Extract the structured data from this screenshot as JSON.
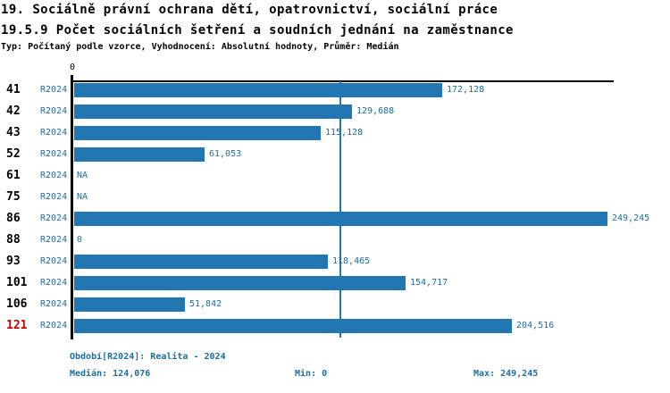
{
  "header": {
    "title_line1": "19. Sociálně právní ochrana dětí, opatrovnictví, sociální práce",
    "title_line2": "19.5.9 Počet sociálních šetření a soudních jednání na zaměstnance",
    "meta_line": "Typ: Počítaný podle vzorce, Vyhodnocení: Absolutní hodnoty, Průměr: Medián"
  },
  "chart_data": {
    "type": "bar",
    "orientation": "horizontal",
    "title": "19.5.9 Počet sociálních šetření a soudních jednání na zaměstnance",
    "zero_tick_label": "0",
    "period_code": "R2024",
    "categories": [
      "41",
      "42",
      "43",
      "52",
      "61",
      "75",
      "86",
      "88",
      "93",
      "101",
      "106",
      "121"
    ],
    "values": [
      172128,
      129688,
      115128,
      61053,
      null,
      null,
      249245,
      0,
      118465,
      154717,
      51842,
      204516
    ],
    "value_labels": [
      "172,128",
      "129,688",
      "115,128",
      "61,053",
      "NA",
      "NA",
      "249,245",
      "0",
      "118,465",
      "154,717",
      "51,842",
      "204,516"
    ],
    "highlighted_categories": [
      "121"
    ],
    "median": 124076,
    "xlim": [
      0,
      251800
    ],
    "grid": false,
    "legend_position": "none",
    "colors": {
      "bar": "#2277B3",
      "text": "#1B6FA3",
      "category": "#000000",
      "highlight": "#CC0000",
      "axis": "#000000"
    }
  },
  "footer": {
    "period_line": "Období[R2024]: Realita - 2024",
    "median_label": "Medián: 124,076",
    "min_label": "Min: 0",
    "max_label": "Max: 249,245"
  }
}
